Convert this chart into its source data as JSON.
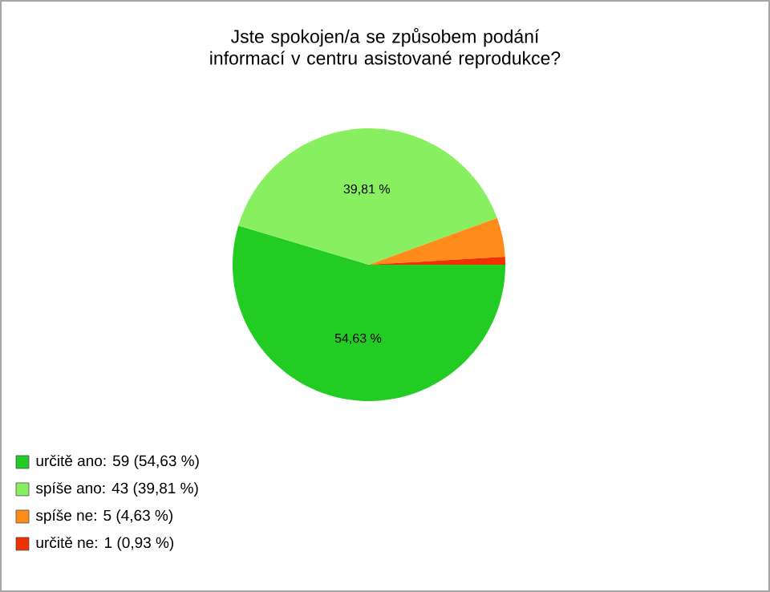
{
  "chart_data": {
    "type": "pie",
    "title": "Jste spokojen/a se způsobem podání informací v centru asistované reprodukce?",
    "categories": [
      "určitě ano: 59 (54,63 %)",
      "spíše ano: 43 (39,81 %)",
      "spíše ne: 5 (4,63 %)",
      "určitě ne: 1 (0,93 %)"
    ],
    "values": [
      54.63,
      39.81,
      4.63,
      0.93
    ],
    "value_labels": [
      "54,63 %",
      "39,81 %",
      null,
      null
    ],
    "colors": [
      "#22cc22",
      "#88f060",
      "#ff8c1a",
      "#ee3300"
    ],
    "legend": "bottom left"
  }
}
